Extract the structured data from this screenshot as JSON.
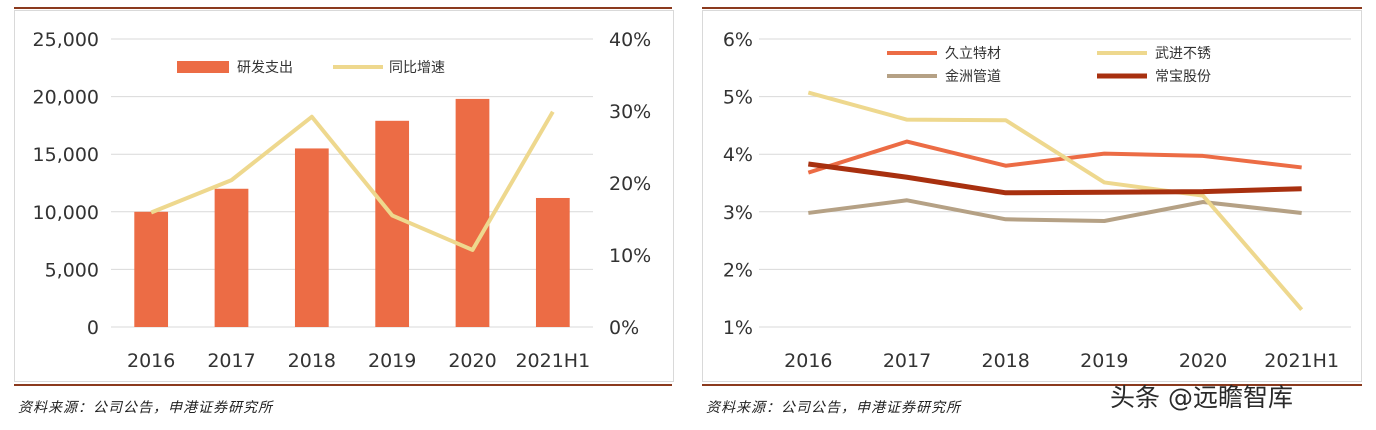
{
  "colors": {
    "bar": "#ec6c45",
    "growth_line": "#eed88e",
    "jiuli": "#ec6c45",
    "wujin": "#eed88e",
    "jinzhou": "#b5a185",
    "changbao": "#a8300f",
    "grid": "#d9d9d9",
    "rule": "#8b3a1e"
  },
  "chart_data": [
    {
      "type": "bar",
      "categories": [
        "2016",
        "2017",
        "2018",
        "2019",
        "2020",
        "2021H1"
      ],
      "series": [
        {
          "name": "研发支出",
          "type": "bar",
          "axis": "left",
          "values": [
            10000,
            12000,
            15500,
            17900,
            19800,
            11200
          ]
        },
        {
          "name": "同比增速",
          "type": "line",
          "axis": "right",
          "values": [
            15.9,
            20.4,
            29.2,
            15.5,
            10.7,
            29.9
          ]
        }
      ],
      "y_left": {
        "lim": [
          0,
          25000
        ],
        "ticks": [
          "0",
          "5,000",
          "10,000",
          "15,000",
          "20,000",
          "25,000"
        ]
      },
      "y_right": {
        "lim": [
          0,
          40
        ],
        "ticks": [
          "0%",
          "10%",
          "20%",
          "30%",
          "40%"
        ]
      },
      "grid": true,
      "legend": "top"
    },
    {
      "type": "line",
      "categories": [
        "2016",
        "2017",
        "2018",
        "2019",
        "2020",
        "2021H1"
      ],
      "series": [
        {
          "name": "久立特材",
          "values": [
            3.68,
            4.22,
            3.8,
            4.01,
            3.97,
            3.77
          ]
        },
        {
          "name": "武进不锈",
          "values": [
            5.07,
            4.6,
            4.59,
            3.51,
            3.28,
            1.3
          ]
        },
        {
          "name": "金洲管道",
          "values": [
            2.98,
            3.2,
            2.87,
            2.84,
            3.17,
            2.98
          ]
        },
        {
          "name": "常宝股份",
          "values": [
            3.83,
            3.6,
            3.33,
            3.34,
            3.35,
            3.4
          ]
        }
      ],
      "ylim": [
        1,
        6
      ],
      "y_ticks": [
        "1%",
        "2%",
        "3%",
        "4%",
        "5%",
        "6%"
      ],
      "grid": true,
      "legend": "top"
    }
  ],
  "source_left": "资料来源：公司公告，申港证券研究所",
  "source_right": "资料来源：公司公告，申港证券研究所",
  "watermark": "头条 @远瞻智库"
}
